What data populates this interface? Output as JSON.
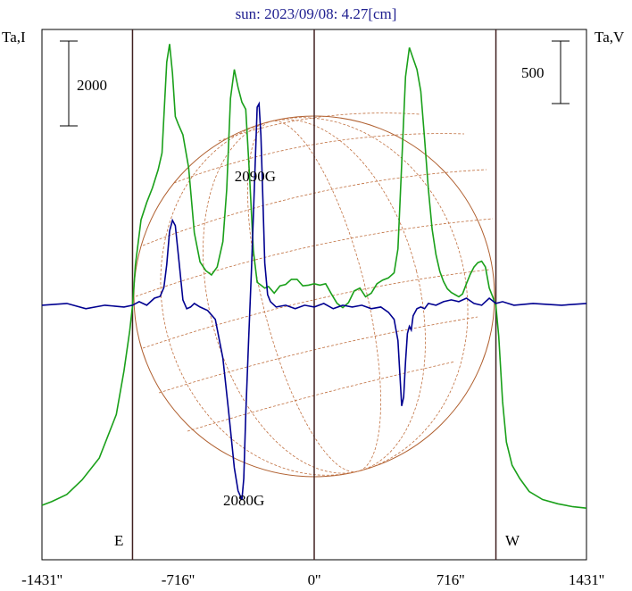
{
  "title": "sun: 2023/09/08: 4.27[cm]",
  "left_axis_label": "Ta,I",
  "right_axis_label": "Ta,V",
  "scale_bar_left_label": "2000",
  "scale_bar_right_label": "500",
  "limb_labels": {
    "east": "E",
    "west": "W"
  },
  "annotations": [
    {
      "text": "2090G",
      "x": -310,
      "series": "Ta,V",
      "side": "above"
    },
    {
      "text": "2080G",
      "x": -370,
      "series": "Ta,V",
      "side": "below"
    }
  ],
  "colors": {
    "title": "#202090",
    "intensity": "#1aa01a",
    "polarization": "#000090",
    "sun_disk": "#b06030",
    "grid_lines": "#402020"
  },
  "chart_data": {
    "type": "line",
    "title": "sun: 2023/09/08: 4.27[cm]",
    "xlim": [
      -1431,
      1431
    ],
    "x_ticks": [
      {
        "value": -1431,
        "label": "-1431''"
      },
      {
        "value": -716,
        "label": "-716''"
      },
      {
        "value": 0,
        "label": "0''"
      },
      {
        "value": 716,
        "label": "716''"
      },
      {
        "value": 1431,
        "label": "1431''"
      }
    ],
    "vertical_lines": [
      -955,
      0,
      955
    ],
    "grid": false,
    "series": [
      {
        "name": "Ta,I",
        "axis": "left",
        "x": [
          -1431,
          -1380,
          -1300,
          -1220,
          -1130,
          -1040,
          -1000,
          -970,
          -955,
          -940,
          -910,
          -880,
          -850,
          -820,
          -800,
          -790,
          -775,
          -760,
          -745,
          -730,
          -715,
          -690,
          -660,
          -630,
          -600,
          -570,
          -540,
          -510,
          -480,
          -460,
          -440,
          -420,
          -400,
          -380,
          -360,
          -340,
          -320,
          -300,
          -280,
          -260,
          -240,
          -210,
          -180,
          -150,
          -120,
          -90,
          -60,
          -30,
          0,
          30,
          60,
          90,
          120,
          150,
          180,
          210,
          240,
          270,
          300,
          330,
          360,
          390,
          420,
          440,
          460,
          480,
          500,
          520,
          540,
          560,
          580,
          600,
          620,
          640,
          660,
          680,
          700,
          720,
          740,
          760,
          780,
          800,
          820,
          840,
          860,
          880,
          900,
          920,
          940,
          955,
          970,
          990,
          1010,
          1040,
          1080,
          1130,
          1200,
          1280,
          1360,
          1431
        ],
        "y": [
          -2750,
          -2700,
          -2600,
          -2400,
          -2100,
          -1500,
          -900,
          -350,
          0,
          560,
          1180,
          1420,
          1620,
          1870,
          2100,
          2600,
          3350,
          3600,
          3200,
          2600,
          2500,
          2350,
          1900,
          1000,
          600,
          480,
          420,
          530,
          880,
          1600,
          2850,
          3250,
          3000,
          2800,
          2700,
          1800,
          760,
          320,
          280,
          240,
          260,
          170,
          270,
          290,
          360,
          360,
          270,
          280,
          300,
          280,
          300,
          160,
          30,
          -30,
          40,
          200,
          240,
          120,
          170,
          300,
          350,
          380,
          450,
          780,
          1950,
          3150,
          3550,
          3400,
          3250,
          2950,
          2300,
          1600,
          1050,
          700,
          470,
          330,
          230,
          180,
          150,
          120,
          160,
          300,
          430,
          530,
          590,
          610,
          530,
          240,
          110,
          0,
          -420,
          -1320,
          -1880,
          -2200,
          -2380,
          -2560,
          -2670,
          -2730,
          -2770,
          -2790
        ]
      },
      {
        "name": "Ta,V",
        "axis": "right",
        "x": [
          -1431,
          -1300,
          -1200,
          -1100,
          -1000,
          -955,
          -920,
          -880,
          -840,
          -810,
          -790,
          -775,
          -760,
          -745,
          -730,
          -710,
          -690,
          -670,
          -650,
          -630,
          -600,
          -560,
          -520,
          -480,
          -450,
          -420,
          -400,
          -380,
          -370,
          -360,
          -345,
          -330,
          -315,
          -300,
          -290,
          -280,
          -270,
          -260,
          -245,
          -230,
          -200,
          -150,
          -100,
          -50,
          0,
          50,
          100,
          150,
          200,
          250,
          300,
          350,
          390,
          420,
          440,
          460,
          470,
          480,
          490,
          500,
          510,
          520,
          540,
          560,
          580,
          600,
          640,
          680,
          720,
          760,
          800,
          840,
          880,
          920,
          955,
          990,
          1050,
          1150,
          1300,
          1431
        ],
        "y": [
          0,
          5,
          -10,
          0,
          -5,
          0,
          10,
          0,
          20,
          25,
          50,
          115,
          210,
          240,
          225,
          120,
          15,
          -10,
          -5,
          5,
          -5,
          -15,
          -40,
          -150,
          -300,
          -460,
          -525,
          -550,
          -490,
          -310,
          -100,
          100,
          330,
          560,
          570,
          480,
          300,
          120,
          30,
          10,
          -5,
          0,
          -10,
          0,
          -5,
          5,
          -10,
          0,
          -5,
          0,
          -10,
          -5,
          -20,
          -40,
          -100,
          -285,
          -260,
          -160,
          -80,
          -60,
          -70,
          -30,
          -10,
          -5,
          -10,
          5,
          0,
          10,
          15,
          10,
          20,
          5,
          0,
          20,
          5,
          10,
          0,
          5,
          0,
          5
        ]
      }
    ],
    "ylim_left": [
      -3500,
      3800
    ],
    "ylim_right": [
      -720,
      780
    ]
  }
}
